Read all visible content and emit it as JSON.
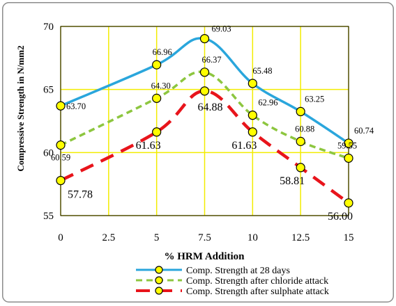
{
  "chart_data": {
    "type": "line",
    "title": "",
    "xlabel": "% HRM Addition",
    "ylabel": "Compressive Strength in N/mm2",
    "x_ticks": [
      "0",
      "2.5",
      "5",
      "7.5",
      "10",
      "12.5",
      "15"
    ],
    "y_ticks": [
      "55",
      "60",
      "65",
      "70"
    ],
    "xlim": [
      0,
      15
    ],
    "ylim": [
      55,
      70
    ],
    "grid": true,
    "legend_position": "bottom",
    "series": [
      {
        "name": "Comp. Strength at 28 days",
        "color": "#2aa6dc",
        "dash": "solid",
        "x": [
          0,
          5,
          7.5,
          10,
          12.5,
          15
        ],
        "y": [
          63.7,
          66.96,
          69.03,
          65.48,
          63.25,
          60.74
        ],
        "labels": [
          "63.70",
          "66.96",
          "69.03",
          "65.48",
          "63.25",
          "60.74"
        ]
      },
      {
        "name": "Comp. Strength after chloride attack",
        "color": "#8dc63f",
        "dash": "dashed",
        "x": [
          0,
          5,
          7.5,
          10,
          12.5,
          15
        ],
        "y": [
          60.59,
          64.3,
          66.37,
          62.96,
          60.88,
          59.55
        ],
        "labels": [
          "60.59",
          "64.30",
          "66.37",
          "62.96",
          "60.88",
          "59.55"
        ]
      },
      {
        "name": "Comp. Strength after sulphate attack",
        "color": "#e8141b",
        "dash": "longdash",
        "x": [
          0,
          5,
          7.5,
          10,
          12.5,
          15
        ],
        "y": [
          57.78,
          61.63,
          64.88,
          61.63,
          58.81,
          56.0
        ],
        "labels": [
          "57.78",
          "61.63",
          "64.88",
          "61.63",
          "58.81",
          "56.00"
        ]
      }
    ]
  }
}
